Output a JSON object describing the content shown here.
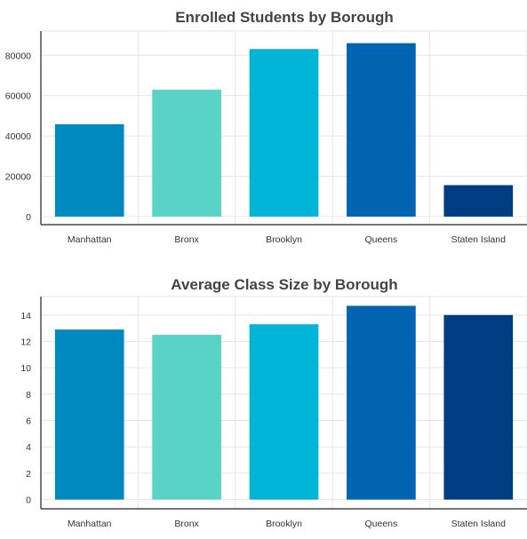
{
  "chart_data": [
    {
      "type": "bar",
      "title": "Enrolled Students by Borough",
      "xlabel": "",
      "ylabel": "",
      "categories": [
        "Manhattan",
        "Bronx",
        "Brooklyn",
        "Queens",
        "Staten Island"
      ],
      "values": [
        45800,
        62900,
        83100,
        86000,
        15600
      ],
      "colors": [
        "#0089c0",
        "#5ad3c7",
        "#00b4d8",
        "#0064b0",
        "#003c82"
      ],
      "ylim": [
        -4000,
        92000
      ],
      "yticks": [
        0,
        20000,
        40000,
        60000,
        80000
      ],
      "grid": true
    },
    {
      "type": "bar",
      "title": "Average Class Size by Borough",
      "xlabel": "",
      "ylabel": "",
      "categories": [
        "Manhattan",
        "Bronx",
        "Brooklyn",
        "Queens",
        "Staten Island"
      ],
      "values": [
        12.9,
        12.5,
        13.3,
        14.7,
        14.0
      ],
      "colors": [
        "#0089c0",
        "#5ad3c7",
        "#00b4d8",
        "#0064b0",
        "#003c82"
      ],
      "ylim": [
        -0.7,
        15.4
      ],
      "yticks": [
        0,
        2,
        4,
        6,
        8,
        10,
        12,
        14
      ],
      "grid": true
    }
  ]
}
